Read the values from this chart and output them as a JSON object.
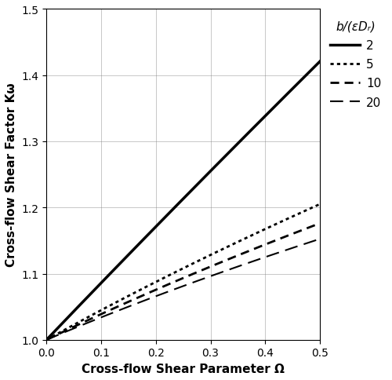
{
  "title": "",
  "xlabel": "Cross-flow Shear Parameter Ω",
  "ylabel": "Cross-flow Shear Factor Kω",
  "xlim": [
    0,
    0.5
  ],
  "ylim": [
    1.0,
    1.5
  ],
  "xticks": [
    0,
    0.1,
    0.2,
    0.3,
    0.4,
    0.5
  ],
  "yticks": [
    1.0,
    1.1,
    1.2,
    1.3,
    1.4,
    1.5
  ],
  "legend_title": "b/(εDᵣ)",
  "series": [
    {
      "label": "2",
      "b_ratio": 2,
      "linestyle": "-",
      "linewidth": 2.5,
      "color": "#000000",
      "exponent": 0.866
    },
    {
      "label": "5",
      "b_ratio": 5,
      "linestyle": ":",
      "linewidth": 2.0,
      "color": "#000000",
      "exponent": 0.4
    },
    {
      "label": "10",
      "b_ratio": 10,
      "linestyle": "--",
      "linewidth": 2.0,
      "color": "#000000",
      "exponent": 0.33
    },
    {
      "label": "20",
      "b_ratio": 20,
      "linestyle": "--",
      "linewidth": 1.5,
      "color": "#000000",
      "exponent": 0.29
    }
  ],
  "omega_range": [
    0,
    0.5
  ],
  "n_points": 500,
  "background_color": "#ffffff",
  "grid": true,
  "figsize": [
    5.0,
    4.85
  ],
  "dpi": 100
}
